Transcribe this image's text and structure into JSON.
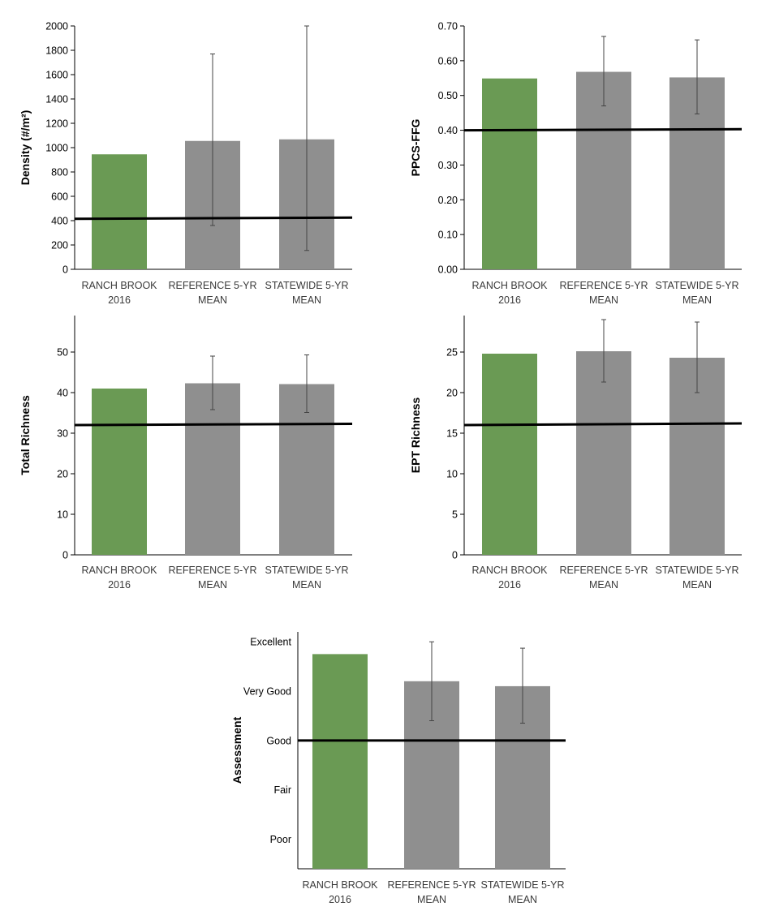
{
  "colors": {
    "site": "#6a9a54",
    "comparison": "#8f8f8f",
    "threshold": "#000000"
  },
  "chart_data": [
    {
      "type": "bar",
      "ylabel": "Density (#/m²)",
      "ylim": [
        0,
        2000
      ],
      "yticks": [
        "0",
        "200",
        "400",
        "600",
        "800",
        "1000",
        "1200",
        "1400",
        "1600",
        "1800",
        "2000"
      ],
      "ytick_values": [
        0,
        200,
        400,
        600,
        800,
        1000,
        1200,
        1400,
        1600,
        1800,
        2000
      ],
      "categories": [
        [
          "RANCH BROOK",
          "2016"
        ],
        [
          "REFERENCE 5-YR",
          "MEAN"
        ],
        [
          "STATEWIDE 5-YR",
          "MEAN"
        ]
      ],
      "values": [
        945,
        1055,
        1068
      ],
      "error_bars": [
        null,
        [
          360,
          1770
        ],
        [
          155,
          2000
        ]
      ],
      "threshold": [
        415,
        425
      ]
    },
    {
      "type": "bar",
      "ylabel": "PPCS-FFG",
      "ylim": [
        0,
        0.7
      ],
      "yticks": [
        "0.00",
        "0.10",
        "0.20",
        "0.30",
        "0.40",
        "0.50",
        "0.60",
        "0.70"
      ],
      "ytick_values": [
        0,
        0.1,
        0.2,
        0.3,
        0.4,
        0.5,
        0.6,
        0.7
      ],
      "categories": [
        [
          "RANCH BROOK",
          "2016"
        ],
        [
          "REFERENCE 5-YR",
          "MEAN"
        ],
        [
          "STATEWIDE 5-YR",
          "MEAN"
        ]
      ],
      "values": [
        0.549,
        0.568,
        0.552
      ],
      "error_bars": [
        null,
        [
          0.47,
          0.67
        ],
        [
          0.447,
          0.66
        ]
      ],
      "threshold": [
        0.4,
        0.403
      ]
    },
    {
      "type": "bar",
      "ylabel": "Total Richness",
      "ylim": [
        0,
        59
      ],
      "yticks": [
        "0",
        "10",
        "20",
        "30",
        "40",
        "50"
      ],
      "ytick_values": [
        0,
        10,
        20,
        30,
        40,
        50
      ],
      "categories": [
        [
          "RANCH BROOK",
          "2016"
        ],
        [
          "REFERENCE 5-YR",
          "MEAN"
        ],
        [
          "STATEWIDE 5-YR",
          "MEAN"
        ]
      ],
      "values": [
        41,
        42.3,
        42.1
      ],
      "error_bars": [
        null,
        [
          35.8,
          49
        ],
        [
          35.1,
          49.3
        ]
      ],
      "threshold": [
        32,
        32.3
      ]
    },
    {
      "type": "bar",
      "ylabel": "EPT Richness",
      "ylim": [
        0,
        29.5
      ],
      "yticks": [
        "0",
        "5",
        "10",
        "15",
        "20",
        "25"
      ],
      "ytick_values": [
        0,
        5,
        10,
        15,
        20,
        25
      ],
      "categories": [
        [
          "RANCH BROOK",
          "2016"
        ],
        [
          "REFERENCE 5-YR",
          "MEAN"
        ],
        [
          "STATEWIDE 5-YR",
          "MEAN"
        ]
      ],
      "values": [
        24.8,
        25.1,
        24.3
      ],
      "error_bars": [
        null,
        [
          21.3,
          29
        ],
        [
          20,
          28.7
        ]
      ],
      "threshold": [
        16,
        16.2
      ]
    },
    {
      "type": "bar",
      "ylabel": "Assessment",
      "ylim": [
        0,
        4.8
      ],
      "yticks": [
        "Poor",
        "Fair",
        "Good",
        "Very Good",
        "Excellent"
      ],
      "ytick_values": [
        0.6,
        1.6,
        2.6,
        3.6,
        4.6
      ],
      "categories": [
        [
          "RANCH BROOK",
          "2016"
        ],
        [
          "REFERENCE 5-YR",
          "MEAN"
        ],
        [
          "STATEWIDE 5-YR",
          "MEAN"
        ]
      ],
      "values": [
        4.35,
        3.8,
        3.7
      ],
      "error_bars": [
        null,
        [
          3.0,
          4.6
        ],
        [
          2.95,
          4.47
        ]
      ],
      "threshold": [
        2.6,
        2.6
      ]
    }
  ]
}
